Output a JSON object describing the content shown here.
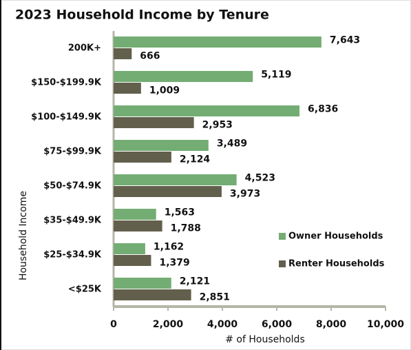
{
  "chart_data": {
    "type": "hbar",
    "title": "2023 Household Income by Tenure",
    "categories": [
      "200K+",
      "$150-$199.9K",
      "$100-$149.9K",
      "$75-$99.9K",
      "$50-$74.9K",
      "$35-$49.9K",
      "$25-$34.9K",
      "<$25K"
    ],
    "series": [
      {
        "name": "Owner Households",
        "color": "#73ad73",
        "values": [
          7643,
          5119,
          6836,
          3489,
          4523,
          1563,
          1162,
          2121
        ],
        "value_labels": [
          "7,643",
          "5,119",
          "6,836",
          "3,489",
          "4,523",
          "1,563",
          "1,162",
          "2,121"
        ]
      },
      {
        "name": "Renter Households",
        "color": "#625f4c",
        "values": [
          666,
          1009,
          2953,
          2124,
          3973,
          1788,
          1379,
          2851
        ],
        "value_labels": [
          "666",
          "1,009",
          "2,953",
          "2,124",
          "3,973",
          "1,788",
          "1,379",
          "2,851"
        ]
      }
    ],
    "xlabel": "# of Households",
    "ylabel": "Household Income",
    "xlim": [
      0,
      10000
    ],
    "xticks": [
      0,
      {
        "value": 2000,
        "label": "2,000"
      },
      {
        "value": 4000,
        "label": "4,000"
      },
      {
        "value": 6000,
        "label": "6,000"
      },
      {
        "value": 8000,
        "label": "8,000"
      },
      {
        "value": 10000,
        "label": "10,000"
      }
    ],
    "legend": "right"
  }
}
